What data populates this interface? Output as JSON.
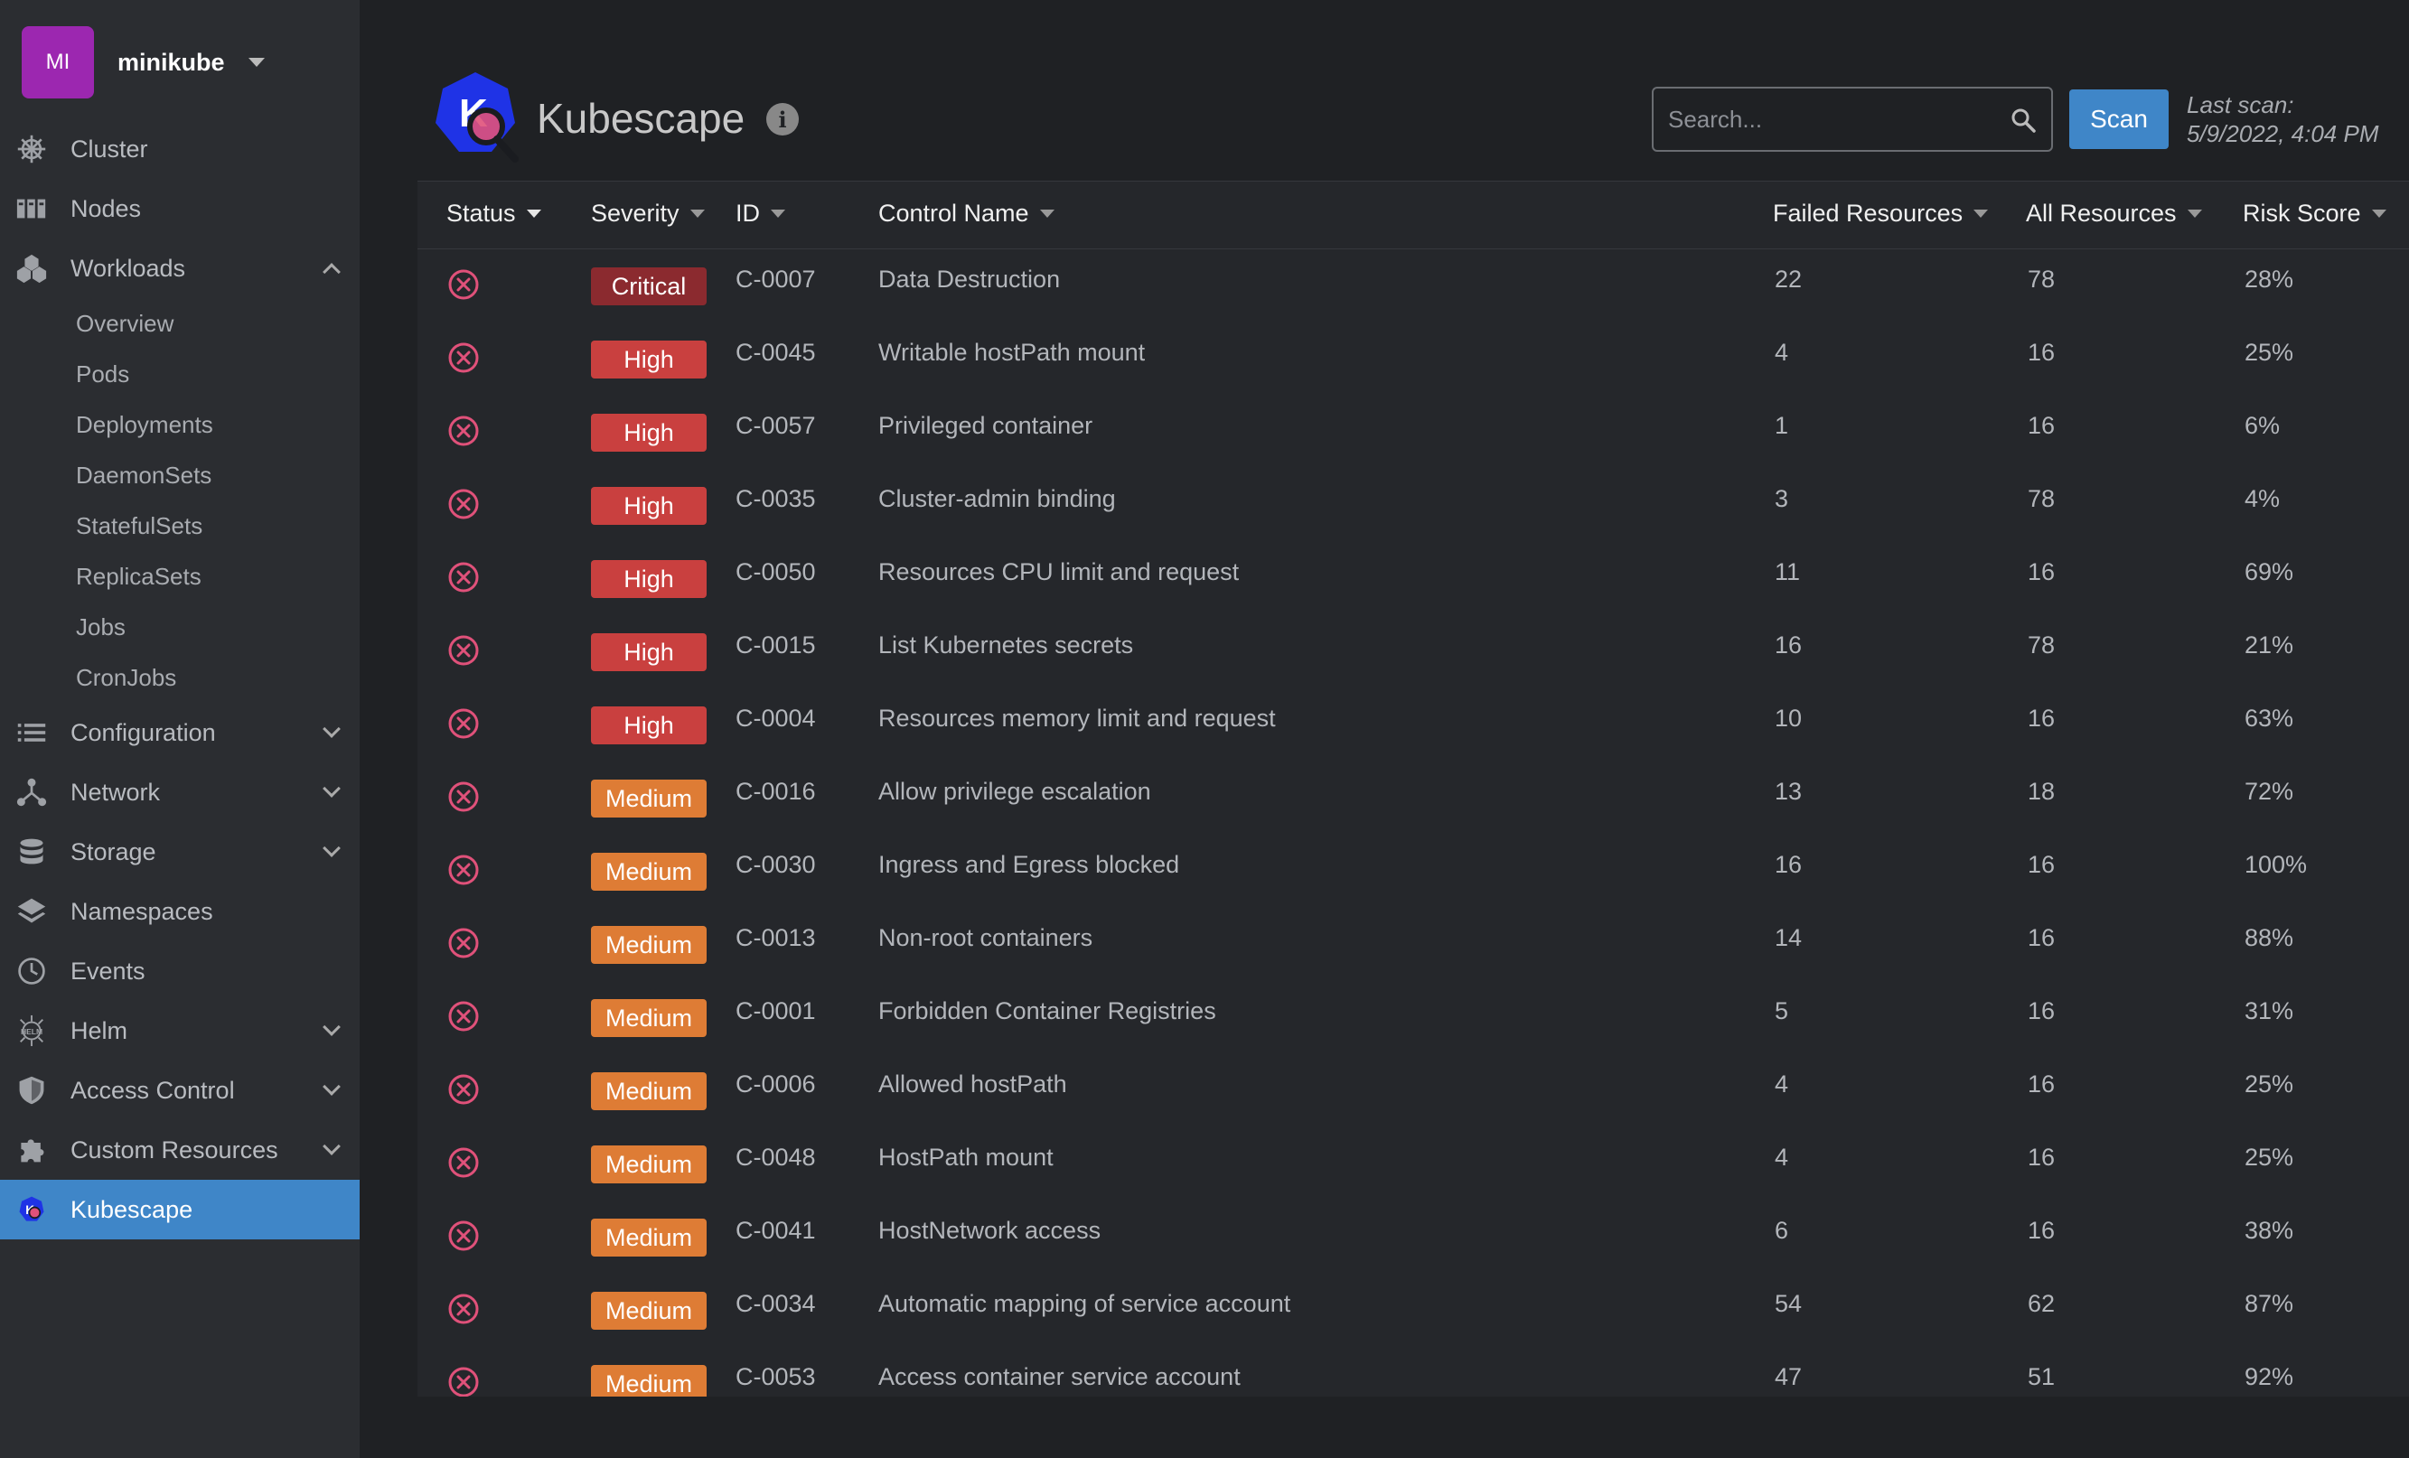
{
  "cluster": {
    "avatar_initials": "MI",
    "name": "minikube"
  },
  "sidebar": {
    "items": [
      {
        "label": "Cluster",
        "icon": "helm-wheel-icon"
      },
      {
        "label": "Nodes",
        "icon": "nodes-icon"
      },
      {
        "label": "Workloads",
        "icon": "workloads-icon",
        "expanded": true,
        "children": [
          "Overview",
          "Pods",
          "Deployments",
          "DaemonSets",
          "StatefulSets",
          "ReplicaSets",
          "Jobs",
          "CronJobs"
        ]
      },
      {
        "label": "Configuration",
        "icon": "list-icon",
        "expandable": true
      },
      {
        "label": "Network",
        "icon": "network-icon",
        "expandable": true
      },
      {
        "label": "Storage",
        "icon": "storage-icon",
        "expandable": true
      },
      {
        "label": "Namespaces",
        "icon": "layers-icon"
      },
      {
        "label": "Events",
        "icon": "clock-icon"
      },
      {
        "label": "Helm",
        "icon": "helm-icon",
        "expandable": true
      },
      {
        "label": "Access Control",
        "icon": "shield-icon",
        "expandable": true
      },
      {
        "label": "Custom Resources",
        "icon": "puzzle-icon",
        "expandable": true
      },
      {
        "label": "Kubescape",
        "icon": "kubescape-icon",
        "active": true
      }
    ]
  },
  "header": {
    "title": "Kubescape",
    "search_placeholder": "Search...",
    "scan_label": "Scan",
    "last_scan_label": "Last scan:",
    "last_scan_time": "5/9/2022, 4:04 PM"
  },
  "table": {
    "columns": [
      "Status",
      "Severity",
      "ID",
      "Control Name",
      "Failed Resources",
      "All Resources",
      "Risk Score"
    ],
    "severity_colors": {
      "Critical": "#8b2a2f",
      "High": "#c9403f",
      "Medium": "#de7c35"
    },
    "rows": [
      {
        "severity": "Critical",
        "id": "C-0007",
        "name": "Data Destruction",
        "failed": "22",
        "all": "78",
        "risk": "28%"
      },
      {
        "severity": "High",
        "id": "C-0045",
        "name": "Writable hostPath mount",
        "failed": "4",
        "all": "16",
        "risk": "25%"
      },
      {
        "severity": "High",
        "id": "C-0057",
        "name": "Privileged container",
        "failed": "1",
        "all": "16",
        "risk": "6%"
      },
      {
        "severity": "High",
        "id": "C-0035",
        "name": "Cluster-admin binding",
        "failed": "3",
        "all": "78",
        "risk": "4%"
      },
      {
        "severity": "High",
        "id": "C-0050",
        "name": "Resources CPU limit and request",
        "failed": "11",
        "all": "16",
        "risk": "69%"
      },
      {
        "severity": "High",
        "id": "C-0015",
        "name": "List Kubernetes secrets",
        "failed": "16",
        "all": "78",
        "risk": "21%"
      },
      {
        "severity": "High",
        "id": "C-0004",
        "name": "Resources memory limit and request",
        "failed": "10",
        "all": "16",
        "risk": "63%"
      },
      {
        "severity": "Medium",
        "id": "C-0016",
        "name": "Allow privilege escalation",
        "failed": "13",
        "all": "18",
        "risk": "72%"
      },
      {
        "severity": "Medium",
        "id": "C-0030",
        "name": "Ingress and Egress blocked",
        "failed": "16",
        "all": "16",
        "risk": "100%"
      },
      {
        "severity": "Medium",
        "id": "C-0013",
        "name": "Non-root containers",
        "failed": "14",
        "all": "16",
        "risk": "88%"
      },
      {
        "severity": "Medium",
        "id": "C-0001",
        "name": "Forbidden Container Registries",
        "failed": "5",
        "all": "16",
        "risk": "31%"
      },
      {
        "severity": "Medium",
        "id": "C-0006",
        "name": "Allowed hostPath",
        "failed": "4",
        "all": "16",
        "risk": "25%"
      },
      {
        "severity": "Medium",
        "id": "C-0048",
        "name": "HostPath mount",
        "failed": "4",
        "all": "16",
        "risk": "25%"
      },
      {
        "severity": "Medium",
        "id": "C-0041",
        "name": "HostNetwork access",
        "failed": "6",
        "all": "16",
        "risk": "38%"
      },
      {
        "severity": "Medium",
        "id": "C-0034",
        "name": "Automatic mapping of service account",
        "failed": "54",
        "all": "62",
        "risk": "87%"
      },
      {
        "severity": "Medium",
        "id": "C-0053",
        "name": "Access container service account",
        "failed": "47",
        "all": "51",
        "risk": "92%"
      }
    ]
  }
}
